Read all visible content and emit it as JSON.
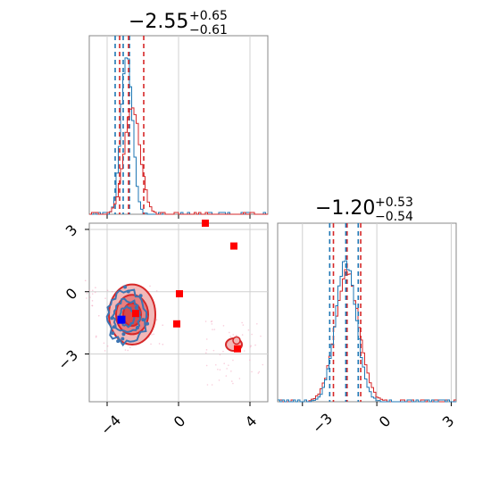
{
  "chart_data": [
    {
      "type": "histogram",
      "panel": "marginal-x",
      "title": {
        "value": "−2.55",
        "upper": "+0.65",
        "lower": "−0.61"
      },
      "xlim": [
        -5,
        5
      ],
      "grid": true,
      "series": [
        {
          "color": "#1f77b4",
          "mode": -2.9,
          "spread": 0.32,
          "peak": 0.9,
          "quantiles": [
            -3.55,
            -3.1,
            -2.75
          ]
        },
        {
          "color": "#d62728",
          "mode": -2.6,
          "spread": 0.45,
          "peak": 0.6,
          "quantiles": [
            -3.3,
            -2.8,
            -1.95
          ]
        }
      ]
    },
    {
      "type": "histogram",
      "panel": "marginal-y",
      "title": {
        "value": "−1.20",
        "upper": "+0.53",
        "lower": "−0.54"
      },
      "xlim": [
        -4,
        3.2
      ],
      "xticks": [
        "−3",
        "0",
        "3"
      ],
      "grid": true,
      "series": [
        {
          "color": "#1f77b4",
          "mode": -1.25,
          "spread": 0.42,
          "peak": 0.78,
          "quantiles": [
            -1.9,
            -1.25,
            -0.75
          ]
        },
        {
          "color": "#d62728",
          "mode": -1.2,
          "spread": 0.48,
          "peak": 0.72,
          "quantiles": [
            -1.75,
            -1.2,
            -0.65
          ]
        }
      ]
    },
    {
      "type": "scatter",
      "panel": "joint",
      "xlim": [
        -5,
        5
      ],
      "ylim": [
        -5.3,
        3.3
      ],
      "xticks": [
        "−4",
        "0",
        "4"
      ],
      "yticks": [
        "3",
        "0",
        "−3"
      ],
      "grid": true,
      "red_contours": [
        {
          "cx": -2.6,
          "cy": -1.1,
          "rx": 1.3,
          "ry": 1.45
        },
        {
          "cx": -2.6,
          "cy": -1.1,
          "rx": 0.9,
          "ry": 0.95
        },
        {
          "cx": -2.6,
          "cy": -1.1,
          "rx": 0.5,
          "ry": 0.55
        }
      ],
      "blue_contours": [
        {
          "cx": -2.9,
          "cy": -1.2,
          "rx": 1.1,
          "ry": 1.25
        },
        {
          "cx": -2.9,
          "cy": -1.2,
          "rx": 0.75,
          "ry": 0.8
        },
        {
          "cx": -2.9,
          "cy": -1.2,
          "rx": 0.4,
          "ry": 0.45
        }
      ],
      "red_markers": [
        {
          "x": 1.5,
          "y": 3.3
        },
        {
          "x": 3.1,
          "y": 2.2
        },
        {
          "x": 0.05,
          "y": -0.1
        },
        {
          "x": -0.1,
          "y": -1.55
        },
        {
          "x": 3.3,
          "y": -2.75
        },
        {
          "x": -2.4,
          "y": -1.05
        }
      ],
      "blue_markers": [
        {
          "x": -3.2,
          "y": -1.35
        }
      ],
      "island": {
        "x": 3.1,
        "y": -2.55
      }
    }
  ]
}
